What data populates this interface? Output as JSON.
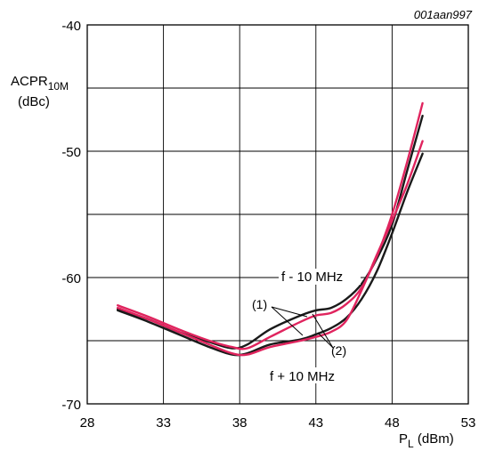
{
  "figure_id": "001aan997",
  "chart_data": {
    "type": "line",
    "ylabel": {
      "main": "ACPR",
      "sub": "10M",
      "unit": "(dBc)"
    },
    "xlabel": {
      "main": "P",
      "sub": "L",
      "unit": " (dBm)"
    },
    "xlim": [
      28,
      53
    ],
    "ylim": [
      -70,
      -40
    ],
    "xticks": [
      "28",
      "33",
      "38",
      "43",
      "48",
      "53"
    ],
    "yticks": [
      "-40",
      "-50",
      "-60",
      "-70"
    ],
    "ytick_values": [
      -40,
      -50,
      -60,
      -70
    ],
    "grid": true,
    "annotations": {
      "upper": "f - 10 MHz",
      "lower": "f + 10 MHz",
      "label1": "(1)",
      "label2": "(2)"
    },
    "colors": {
      "curve_1": "#1a1a1a",
      "curve_2": "#e0245e"
    },
    "series": [
      {
        "color_key": "curve_1",
        "x": [
          30,
          32,
          34,
          36,
          37.5,
          38.5,
          40,
          42,
          43,
          44,
          45,
          46,
          47,
          48,
          49,
          50
        ],
        "y": [
          -62.5,
          -63.3,
          -64.3,
          -65.1,
          -65.6,
          -65.3,
          -64.1,
          -63.0,
          -62.6,
          -62.4,
          -61.7,
          -60.5,
          -58.5,
          -55.8,
          -51.5,
          -47.2
        ]
      },
      {
        "color_key": "curve_1",
        "x": [
          30,
          32,
          34,
          36,
          37.5,
          38.5,
          40,
          42,
          43,
          44,
          45,
          46,
          47,
          48,
          49,
          50
        ],
        "y": [
          -62.6,
          -63.5,
          -64.5,
          -65.5,
          -66.1,
          -66.0,
          -65.3,
          -64.9,
          -64.5,
          -64.0,
          -63.2,
          -61.7,
          -59.5,
          -56.5,
          -53.2,
          -50.2
        ]
      },
      {
        "color_key": "curve_2",
        "x": [
          30,
          32,
          34,
          36,
          37.5,
          38.5,
          40,
          42,
          43,
          44,
          45,
          46,
          47,
          48,
          49,
          50
        ],
        "y": [
          -62.2,
          -63.1,
          -64.1,
          -65.0,
          -65.5,
          -65.6,
          -64.7,
          -63.5,
          -63.0,
          -62.8,
          -62.1,
          -60.8,
          -58.3,
          -55.0,
          -50.8,
          -46.2
        ]
      },
      {
        "color_key": "curve_2",
        "x": [
          30,
          32,
          34,
          36,
          37.5,
          38.5,
          40,
          42,
          43,
          44,
          45,
          46,
          47,
          48,
          49,
          50
        ],
        "y": [
          -62.4,
          -63.3,
          -64.3,
          -65.3,
          -66.0,
          -66.1,
          -65.5,
          -65.0,
          -64.7,
          -64.3,
          -63.4,
          -61.0,
          -58.2,
          -55.5,
          -52.6,
          -49.2
        ]
      }
    ]
  }
}
